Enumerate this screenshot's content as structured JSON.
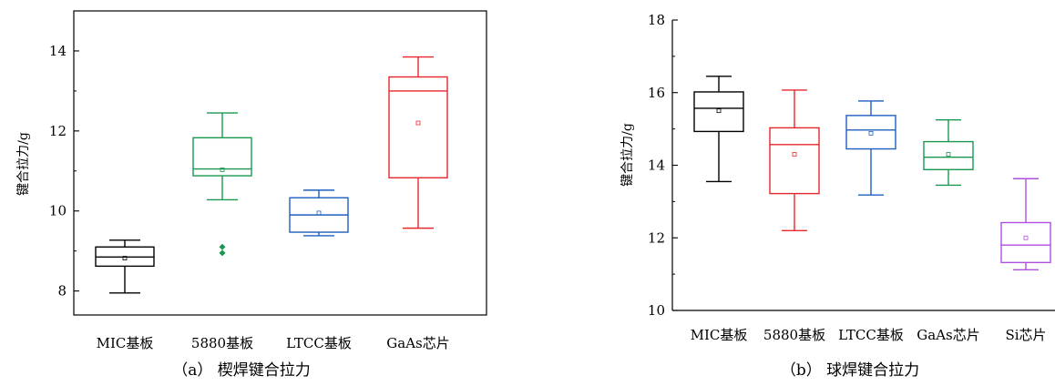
{
  "chart_data": [
    {
      "type": "boxplot",
      "caption": "（a） 楔焊键合拉力",
      "ylabel": "键合拉力/g",
      "ylim": [
        7.4,
        15.0
      ],
      "yticks": [
        8,
        10,
        12,
        14
      ],
      "grid": false,
      "categories": [
        "MIC基板",
        "5880基板",
        "LTCC基板",
        "GaAs芯片"
      ],
      "colors": [
        "#000000",
        "#1a9850",
        "#1f5fbf",
        "#e8262b"
      ],
      "boxes": [
        {
          "name": "MIC基板",
          "whisker_low": 7.95,
          "q1": 8.62,
          "median": 8.85,
          "q3": 9.1,
          "whisker_high": 9.27,
          "mean": 8.82,
          "outliers": []
        },
        {
          "name": "5880基板",
          "whisker_low": 10.28,
          "q1": 10.88,
          "median": 11.05,
          "q3": 11.83,
          "whisker_high": 12.45,
          "mean": 11.03,
          "outliers": [
            9.1,
            8.95
          ]
        },
        {
          "name": "LTCC基板",
          "whisker_low": 9.38,
          "q1": 9.47,
          "median": 9.9,
          "q3": 10.33,
          "whisker_high": 10.52,
          "mean": 9.95,
          "outliers": []
        },
        {
          "name": "GaAs芯片",
          "whisker_low": 9.57,
          "q1": 10.83,
          "median": 13.0,
          "q3": 13.35,
          "whisker_high": 13.85,
          "mean": 12.2,
          "outliers": []
        }
      ]
    },
    {
      "type": "boxplot",
      "caption": "（b） 球焊键合拉力",
      "ylabel": "键合拉力/g",
      "ylim": [
        10,
        18
      ],
      "yticks": [
        10,
        12,
        14,
        16,
        18
      ],
      "grid": false,
      "categories": [
        "MIC基板",
        "5880基板",
        "LTCC基板",
        "GaAs芯片",
        "Si芯片"
      ],
      "colors": [
        "#000000",
        "#e8262b",
        "#1f5fbf",
        "#1a9850",
        "#b04ee0"
      ],
      "boxes": [
        {
          "name": "MIC基板",
          "whisker_low": 13.55,
          "q1": 14.93,
          "median": 15.57,
          "q3": 16.02,
          "whisker_high": 16.45,
          "mean": 15.5,
          "outliers": []
        },
        {
          "name": "5880基板",
          "whisker_low": 12.2,
          "q1": 13.22,
          "median": 14.57,
          "q3": 15.03,
          "whisker_high": 16.07,
          "mean": 14.3,
          "outliers": []
        },
        {
          "name": "LTCC基板",
          "whisker_low": 13.18,
          "q1": 14.45,
          "median": 14.97,
          "q3": 15.37,
          "whisker_high": 15.77,
          "mean": 14.88,
          "outliers": []
        },
        {
          "name": "GaAs芯片",
          "whisker_low": 13.45,
          "q1": 13.88,
          "median": 14.22,
          "q3": 14.65,
          "whisker_high": 15.25,
          "mean": 14.3,
          "outliers": []
        },
        {
          "name": "Si芯片",
          "whisker_low": 11.12,
          "q1": 11.32,
          "median": 11.8,
          "q3": 12.42,
          "whisker_high": 13.63,
          "mean": 12.0,
          "outliers": []
        }
      ]
    }
  ]
}
